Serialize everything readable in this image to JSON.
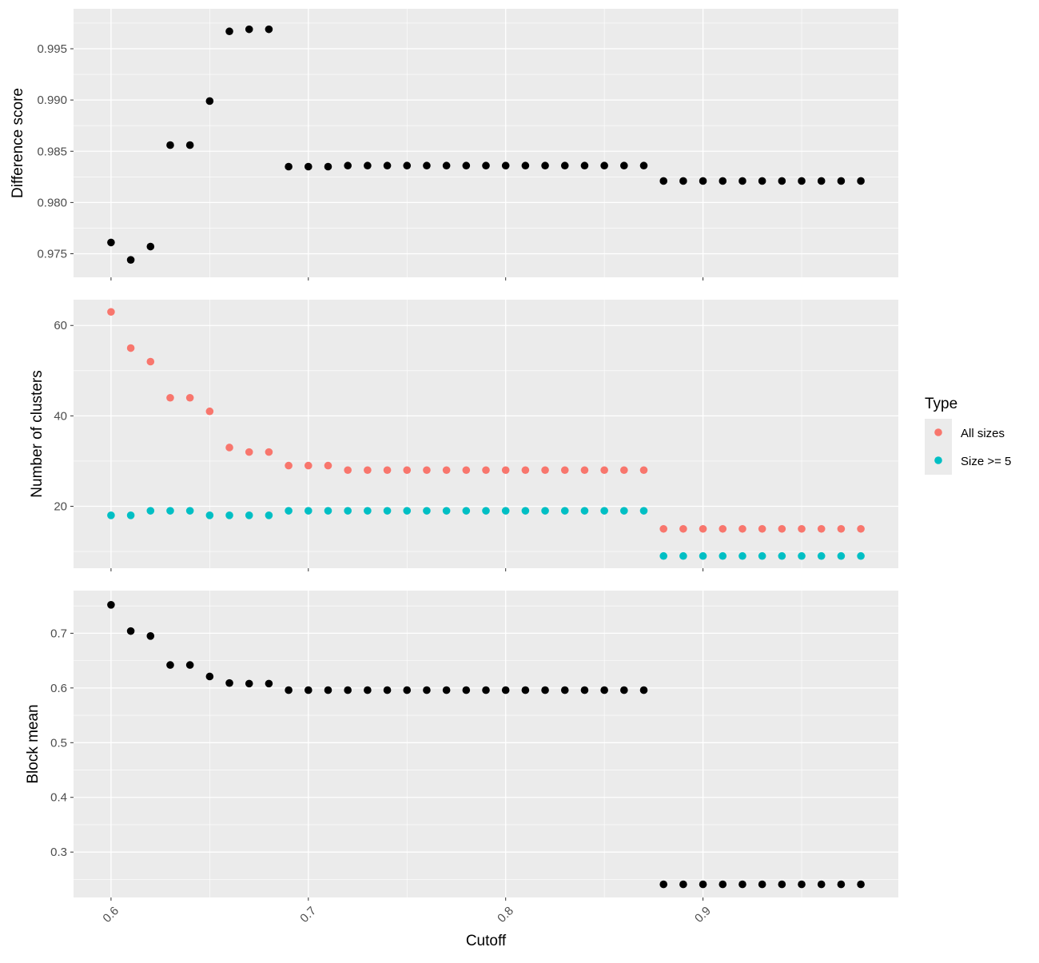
{
  "chart_data": {
    "type": "scatter",
    "layout": "faceted-vertical",
    "xlabel": "Cutoff",
    "xlim": [
      0.581,
      0.999
    ],
    "x_ticks": [
      0.6,
      0.7,
      0.8,
      0.9
    ],
    "x_tick_labels": [
      "0.6",
      "0.7",
      "0.8",
      "0.9"
    ],
    "x": [
      0.6,
      0.61,
      0.62,
      0.63,
      0.64,
      0.65,
      0.66,
      0.67,
      0.68,
      0.69,
      0.7,
      0.71,
      0.72,
      0.73,
      0.74,
      0.75,
      0.76,
      0.77,
      0.78,
      0.79,
      0.8,
      0.81,
      0.82,
      0.83,
      0.84,
      0.85,
      0.86,
      0.87,
      0.88,
      0.89,
      0.9,
      0.91,
      0.92,
      0.93,
      0.94,
      0.95,
      0.96,
      0.97,
      0.98
    ],
    "grid": true,
    "legend_position": "right",
    "panels": [
      {
        "ylabel": "Difference score",
        "ylim": [
          0.9727,
          0.9989
        ],
        "y_ticks": [
          0.975,
          0.98,
          0.985,
          0.99,
          0.995
        ],
        "y_tick_labels": [
          "0.975",
          "0.980",
          "0.985",
          "0.990",
          "0.995"
        ],
        "series": [
          {
            "color": "#000000",
            "values": [
              0.9761,
              0.9744,
              0.9757,
              0.9856,
              0.9856,
              0.9899,
              0.9967,
              0.9969,
              0.9969,
              0.9835,
              0.9835,
              0.9835,
              0.9836,
              0.9836,
              0.9836,
              0.9836,
              0.9836,
              0.9836,
              0.9836,
              0.9836,
              0.9836,
              0.9836,
              0.9836,
              0.9836,
              0.9836,
              0.9836,
              0.9836,
              0.9836,
              0.9821,
              0.9821,
              0.9821,
              0.9821,
              0.9821,
              0.9821,
              0.9821,
              0.9821,
              0.9821,
              0.9821,
              0.9821
            ]
          }
        ]
      },
      {
        "ylabel": "Number of clusters",
        "ylim": [
          6.3,
          65.7
        ],
        "y_ticks": [
          20,
          40,
          60
        ],
        "y_tick_labels": [
          "20",
          "40",
          "60"
        ],
        "series": [
          {
            "name": "All sizes",
            "color": "#F8766D",
            "values": [
              63,
              55,
              52,
              44,
              44,
              41,
              33,
              32,
              32,
              29,
              29,
              29,
              28,
              28,
              28,
              28,
              28,
              28,
              28,
              28,
              28,
              28,
              28,
              28,
              28,
              28,
              28,
              28,
              15,
              15,
              15,
              15,
              15,
              15,
              15,
              15,
              15,
              15,
              15
            ]
          },
          {
            "name": "Size >= 5",
            "color": "#00BFC4",
            "values": [
              18,
              18,
              19,
              19,
              19,
              18,
              18,
              18,
              18,
              19,
              19,
              19,
              19,
              19,
              19,
              19,
              19,
              19,
              19,
              19,
              19,
              19,
              19,
              19,
              19,
              19,
              19,
              19,
              9,
              9,
              9,
              9,
              9,
              9,
              9,
              9,
              9,
              9,
              9
            ]
          }
        ]
      },
      {
        "ylabel": "Block mean",
        "ylim": [
          0.217,
          0.778
        ],
        "y_ticks": [
          0.3,
          0.4,
          0.5,
          0.6,
          0.7
        ],
        "y_tick_labels": [
          "0.3",
          "0.4",
          "0.5",
          "0.6",
          "0.7"
        ],
        "series": [
          {
            "color": "#000000",
            "values": [
              0.752,
              0.704,
              0.695,
              0.642,
              0.642,
              0.621,
              0.609,
              0.608,
              0.608,
              0.596,
              0.596,
              0.596,
              0.596,
              0.596,
              0.596,
              0.596,
              0.596,
              0.596,
              0.596,
              0.596,
              0.596,
              0.596,
              0.596,
              0.596,
              0.596,
              0.596,
              0.596,
              0.596,
              0.241,
              0.241,
              0.241,
              0.241,
              0.241,
              0.241,
              0.241,
              0.241,
              0.241,
              0.241,
              0.241
            ]
          }
        ]
      }
    ],
    "legend": {
      "title": "Type",
      "entries": [
        {
          "label": "All sizes",
          "color": "#F8766D"
        },
        {
          "label": "Size >= 5",
          "color": "#00BFC4"
        }
      ]
    }
  }
}
